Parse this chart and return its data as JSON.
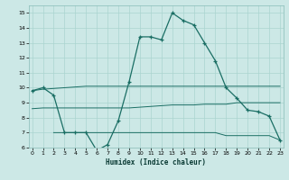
{
  "xlabel": "Humidex (Indice chaleur)",
  "bg_color": "#cce8e6",
  "grid_color": "#aad4d0",
  "line_color": "#1a6e64",
  "main_x": [
    0,
    1,
    2,
    3,
    4,
    5,
    6,
    7,
    8,
    9,
    10,
    11,
    12,
    13,
    14,
    15,
    16,
    17,
    18,
    19,
    20,
    21,
    22,
    23
  ],
  "main_y": [
    9.8,
    10.0,
    9.5,
    7.0,
    7.0,
    7.0,
    5.8,
    6.2,
    7.8,
    10.4,
    13.4,
    13.4,
    13.2,
    15.0,
    14.5,
    14.2,
    13.0,
    11.8,
    10.0,
    9.3,
    8.5,
    8.4,
    8.1,
    6.5
  ],
  "flat1_x": [
    0,
    1,
    2,
    3,
    4,
    5,
    6,
    7,
    8,
    9,
    10,
    11,
    12,
    13,
    14,
    15,
    16,
    17,
    18,
    19,
    20,
    21,
    22,
    23
  ],
  "flat1_y": [
    9.8,
    9.9,
    9.95,
    10.0,
    10.05,
    10.1,
    10.1,
    10.1,
    10.1,
    10.1,
    10.1,
    10.1,
    10.1,
    10.1,
    10.1,
    10.1,
    10.1,
    10.1,
    10.1,
    10.1,
    10.1,
    10.1,
    10.1,
    10.1
  ],
  "flat2_x": [
    0,
    1,
    2,
    3,
    4,
    5,
    6,
    7,
    8,
    9,
    10,
    11,
    12,
    13,
    14,
    15,
    16,
    17,
    18,
    19,
    20,
    21,
    22,
    23
  ],
  "flat2_y": [
    8.6,
    8.65,
    8.65,
    8.65,
    8.65,
    8.65,
    8.65,
    8.65,
    8.65,
    8.65,
    8.7,
    8.75,
    8.8,
    8.85,
    8.85,
    8.85,
    8.9,
    8.9,
    8.9,
    9.0,
    9.0,
    9.0,
    9.0,
    9.0
  ],
  "flat3_x": [
    2,
    3,
    4,
    5,
    6,
    7,
    8,
    9,
    10,
    11,
    12,
    13,
    14,
    15,
    16,
    17,
    18,
    19,
    20,
    21,
    22,
    23
  ],
  "flat3_y": [
    7.0,
    7.0,
    7.0,
    7.0,
    7.0,
    7.0,
    7.0,
    7.0,
    7.0,
    7.0,
    7.0,
    7.0,
    7.0,
    7.0,
    7.0,
    7.0,
    6.8,
    6.8,
    6.8,
    6.8,
    6.8,
    6.5
  ],
  "ylim": [
    6,
    15.5
  ],
  "xlim": [
    -0.3,
    23.3
  ],
  "yticks": [
    6,
    7,
    8,
    9,
    10,
    11,
    12,
    13,
    14,
    15
  ],
  "xticks": [
    0,
    1,
    2,
    3,
    4,
    5,
    6,
    7,
    8,
    9,
    10,
    11,
    12,
    13,
    14,
    15,
    16,
    17,
    18,
    19,
    20,
    21,
    22,
    23
  ]
}
